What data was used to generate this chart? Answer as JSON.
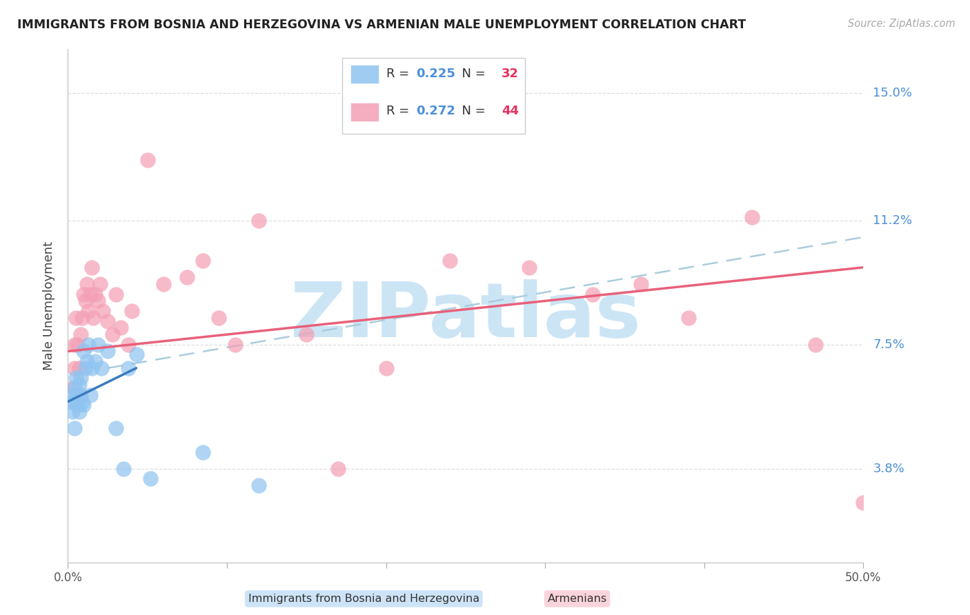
{
  "title": "IMMIGRANTS FROM BOSNIA AND HERZEGOVINA VS ARMENIAN MALE UNEMPLOYMENT CORRELATION CHART",
  "source": "Source: ZipAtlas.com",
  "ylabel": "Male Unemployment",
  "x_min": 0.0,
  "x_max": 0.5,
  "y_min": 0.01,
  "y_max": 0.163,
  "yticks": [
    0.038,
    0.075,
    0.112,
    0.15
  ],
  "ytick_labels": [
    "3.8%",
    "7.5%",
    "11.2%",
    "15.0%"
  ],
  "xticks": [
    0.0,
    0.1,
    0.2,
    0.3,
    0.4,
    0.5
  ],
  "bosnia_color": "#90c4f0",
  "armenian_color": "#f4a0b5",
  "bosnia_trend_color": "#3a7bbf",
  "armenian_trend_color": "#e8607a",
  "dashed_line_color": "#aaccdd",
  "background_color": "#ffffff",
  "watermark_text": "ZIPatlas",
  "watermark_color": "#cce5f5",
  "bosnia_x": [
    0.002,
    0.003,
    0.003,
    0.004,
    0.004,
    0.005,
    0.005,
    0.006,
    0.006,
    0.007,
    0.007,
    0.008,
    0.008,
    0.009,
    0.01,
    0.01,
    0.011,
    0.012,
    0.013,
    0.014,
    0.015,
    0.017,
    0.019,
    0.021,
    0.025,
    0.03,
    0.035,
    0.038,
    0.043,
    0.052,
    0.085,
    0.12
  ],
  "bosnia_y": [
    0.06,
    0.055,
    0.058,
    0.062,
    0.05,
    0.058,
    0.065,
    0.057,
    0.06,
    0.055,
    0.063,
    0.06,
    0.065,
    0.058,
    0.057,
    0.073,
    0.068,
    0.07,
    0.075,
    0.06,
    0.068,
    0.07,
    0.075,
    0.068,
    0.073,
    0.05,
    0.038,
    0.068,
    0.072,
    0.035,
    0.043,
    0.033
  ],
  "armenian_x": [
    0.003,
    0.004,
    0.004,
    0.005,
    0.006,
    0.007,
    0.007,
    0.008,
    0.009,
    0.01,
    0.011,
    0.012,
    0.013,
    0.014,
    0.015,
    0.016,
    0.017,
    0.019,
    0.02,
    0.022,
    0.025,
    0.028,
    0.03,
    0.033,
    0.038,
    0.04,
    0.05,
    0.06,
    0.075,
    0.085,
    0.095,
    0.105,
    0.12,
    0.15,
    0.17,
    0.2,
    0.24,
    0.29,
    0.33,
    0.36,
    0.39,
    0.43,
    0.47,
    0.5
  ],
  "armenian_y": [
    0.062,
    0.068,
    0.075,
    0.083,
    0.075,
    0.06,
    0.068,
    0.078,
    0.083,
    0.09,
    0.088,
    0.093,
    0.085,
    0.09,
    0.098,
    0.083,
    0.09,
    0.088,
    0.093,
    0.085,
    0.082,
    0.078,
    0.09,
    0.08,
    0.075,
    0.085,
    0.13,
    0.093,
    0.095,
    0.1,
    0.083,
    0.075,
    0.112,
    0.078,
    0.038,
    0.068,
    0.1,
    0.098,
    0.09,
    0.093,
    0.083,
    0.113,
    0.075,
    0.028
  ],
  "bosnia_trend_x": [
    0.0,
    0.043
  ],
  "bosnia_trend_y_start": 0.058,
  "bosnia_trend_y_end": 0.068,
  "armenian_trend_x": [
    0.0,
    0.5
  ],
  "armenian_trend_y_start": 0.073,
  "armenian_trend_y_end": 0.098,
  "dashed_trend_x": [
    0.025,
    0.5
  ],
  "dashed_trend_y_start": 0.068,
  "dashed_trend_y_end": 0.107
}
